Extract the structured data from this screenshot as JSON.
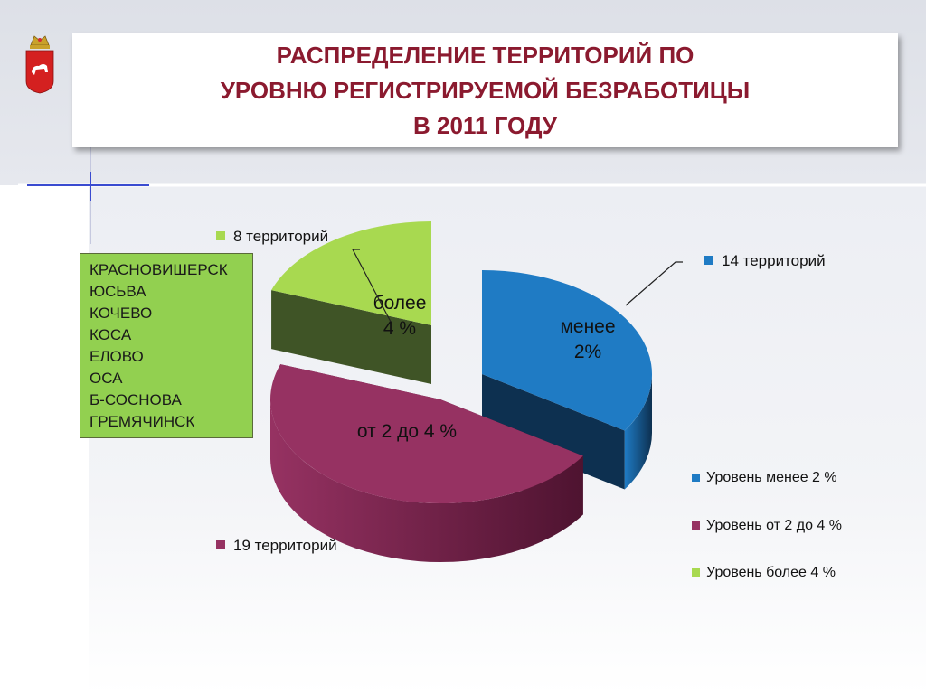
{
  "title": {
    "line1": "РАСПРЕДЕЛЕНИЕ  ТЕРРИТОРИЙ  ПО",
    "line2": "УРОВНЮ РЕГИСТРИРУЕМОЙ БЕЗРАБОТИЦЫ",
    "line3": "В 2011 ГОДУ"
  },
  "towns": [
    "КРАСНОВИШЕРСК",
    "ЮСЬВА",
    "КОЧЕВО",
    "КОСА",
    "ЕЛОВО",
    "ОСА",
    "Б-СОСНОВА",
    "ГРЕМЯЧИНСК"
  ],
  "chart_data": {
    "type": "pie",
    "style": "3d exploded",
    "categories": [
      "Уровень менее 2 %",
      "Уровень от 2 до 4 %",
      "Уровень  более 4 %"
    ],
    "values": [
      14,
      19,
      8
    ],
    "unit": "территорий",
    "slice_labels": [
      "менее 2%",
      "от 2 до 4 %",
      "более 4 %"
    ],
    "callouts": [
      "14  территорий",
      "19 территорий",
      "8 территорий"
    ],
    "colors": [
      "#1f7bc4",
      "#963262",
      "#a8d950"
    ],
    "legend_position": "right"
  }
}
